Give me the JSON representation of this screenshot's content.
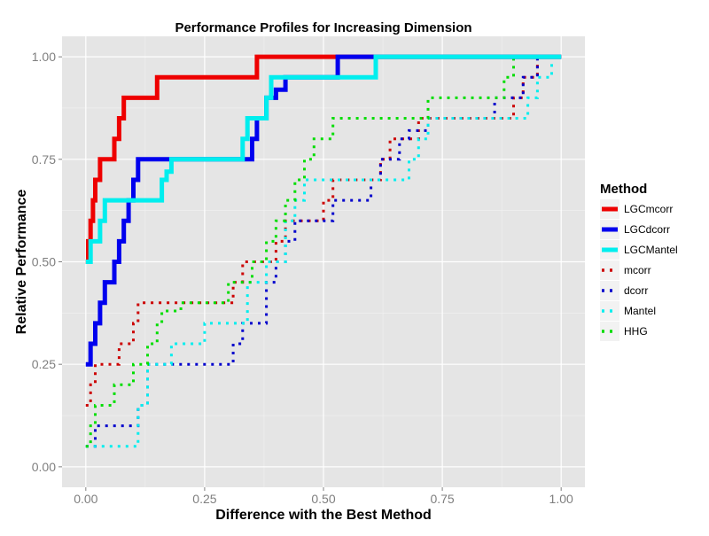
{
  "chart_data": {
    "type": "line",
    "title": "Performance Profiles for Increasing Dimension",
    "xlabel": "Difference with the Best Method",
    "ylabel": "Relative Performance",
    "xlim": [
      -0.05,
      1.05
    ],
    "ylim": [
      -0.05,
      1.05
    ],
    "x_ticks": [
      0,
      0.25,
      0.5,
      0.75,
      1
    ],
    "x_tick_labels": [
      "0.00",
      "0.25",
      "0.50",
      "0.75",
      "1.00"
    ],
    "y_ticks": [
      0,
      0.25,
      0.5,
      0.75,
      1
    ],
    "y_tick_labels": [
      "0.00",
      "0.25",
      "0.50",
      "0.75",
      "1.00"
    ],
    "grid": true,
    "background": "#e5e5e5",
    "legend": {
      "title": "Method",
      "position": "right"
    },
    "series": [
      {
        "name": "LGCmcorr",
        "color": "#ee0000",
        "style": "solid",
        "x": [
          0,
          0.005,
          0.01,
          0.015,
          0.02,
          0.03,
          0.04,
          0.06,
          0.07,
          0.08,
          0.09,
          0.15,
          0.2,
          0.36,
          1.0
        ],
        "y": [
          0.5,
          0.55,
          0.6,
          0.65,
          0.7,
          0.75,
          0.75,
          0.8,
          0.85,
          0.9,
          0.9,
          0.95,
          0.95,
          1.0,
          1.0
        ]
      },
      {
        "name": "LGCdcorr",
        "color": "#0000ee",
        "style": "solid",
        "x": [
          0,
          0.01,
          0.02,
          0.03,
          0.04,
          0.06,
          0.07,
          0.08,
          0.09,
          0.1,
          0.11,
          0.12,
          0.35,
          0.36,
          0.38,
          0.4,
          0.42,
          0.44,
          0.53,
          0.55,
          0.62,
          1.0
        ],
        "y": [
          0.25,
          0.3,
          0.35,
          0.4,
          0.45,
          0.5,
          0.55,
          0.6,
          0.65,
          0.7,
          0.75,
          0.75,
          0.8,
          0.85,
          0.9,
          0.92,
          0.95,
          0.95,
          1.0,
          1.0,
          1.0,
          1.0
        ]
      },
      {
        "name": "LGCMantel",
        "color": "#00eeee",
        "style": "solid",
        "x": [
          0,
          0.01,
          0.02,
          0.03,
          0.04,
          0.15,
          0.16,
          0.17,
          0.18,
          0.32,
          0.33,
          0.34,
          0.35,
          0.38,
          0.39,
          0.6,
          0.61,
          1.0
        ],
        "y": [
          0.5,
          0.55,
          0.55,
          0.6,
          0.65,
          0.65,
          0.7,
          0.72,
          0.75,
          0.75,
          0.8,
          0.85,
          0.85,
          0.9,
          0.95,
          0.95,
          1.0,
          1.0
        ]
      },
      {
        "name": "mcorr",
        "color": "#cc0000",
        "style": "dotted",
        "x": [
          0,
          0.01,
          0.02,
          0.04,
          0.07,
          0.09,
          0.1,
          0.11,
          0.12,
          0.31,
          0.33,
          0.34,
          0.36,
          0.4,
          0.42,
          0.44,
          0.48,
          0.5,
          0.52,
          0.6,
          0.62,
          0.64,
          0.7,
          0.72,
          0.82,
          0.9,
          0.92,
          0.95,
          1.0
        ],
        "y": [
          0.15,
          0.2,
          0.25,
          0.25,
          0.3,
          0.3,
          0.35,
          0.4,
          0.4,
          0.45,
          0.5,
          0.5,
          0.5,
          0.55,
          0.6,
          0.6,
          0.6,
          0.65,
          0.7,
          0.7,
          0.75,
          0.8,
          0.85,
          0.85,
          0.85,
          0.9,
          0.95,
          1.0,
          1.0
        ]
      },
      {
        "name": "dcorr",
        "color": "#0000cc",
        "style": "dotted",
        "x": [
          0,
          0.02,
          0.1,
          0.11,
          0.13,
          0.3,
          0.31,
          0.33,
          0.36,
          0.38,
          0.4,
          0.42,
          0.44,
          0.5,
          0.52,
          0.55,
          0.6,
          0.62,
          0.66,
          0.68,
          0.72,
          0.84,
          0.86,
          0.9,
          0.92,
          0.95,
          1.0
        ],
        "y": [
          0.05,
          0.1,
          0.1,
          0.15,
          0.25,
          0.25,
          0.3,
          0.35,
          0.35,
          0.45,
          0.5,
          0.55,
          0.6,
          0.6,
          0.65,
          0.65,
          0.7,
          0.75,
          0.8,
          0.82,
          0.85,
          0.85,
          0.9,
          0.9,
          0.95,
          1.0,
          1.0
        ]
      },
      {
        "name": "Mantel",
        "color": "#00eeee",
        "style": "dotted",
        "x": [
          0,
          0.03,
          0.09,
          0.11,
          0.13,
          0.18,
          0.25,
          0.3,
          0.34,
          0.38,
          0.42,
          0.44,
          0.46,
          0.5,
          0.65,
          0.68,
          0.7,
          0.72,
          0.74,
          0.9,
          0.93,
          0.95,
          0.98,
          1.0
        ],
        "y": [
          0.05,
          0.05,
          0.05,
          0.15,
          0.25,
          0.3,
          0.35,
          0.35,
          0.45,
          0.5,
          0.6,
          0.65,
          0.7,
          0.7,
          0.7,
          0.75,
          0.8,
          0.85,
          0.85,
          0.85,
          0.9,
          0.95,
          1.0,
          1.0
        ]
      },
      {
        "name": "HHG",
        "color": "#00dd00",
        "style": "dotted",
        "x": [
          0,
          0.01,
          0.02,
          0.06,
          0.1,
          0.13,
          0.15,
          0.16,
          0.2,
          0.3,
          0.35,
          0.38,
          0.4,
          0.42,
          0.44,
          0.46,
          0.48,
          0.5,
          0.52,
          0.55,
          0.7,
          0.72,
          0.74,
          0.86,
          0.88,
          0.9,
          0.95,
          1.0
        ],
        "y": [
          0.05,
          0.1,
          0.15,
          0.2,
          0.25,
          0.3,
          0.35,
          0.38,
          0.4,
          0.45,
          0.5,
          0.55,
          0.6,
          0.65,
          0.7,
          0.75,
          0.8,
          0.8,
          0.85,
          0.85,
          0.85,
          0.9,
          0.9,
          0.9,
          0.95,
          1.0,
          1.0,
          1.0
        ]
      }
    ]
  }
}
